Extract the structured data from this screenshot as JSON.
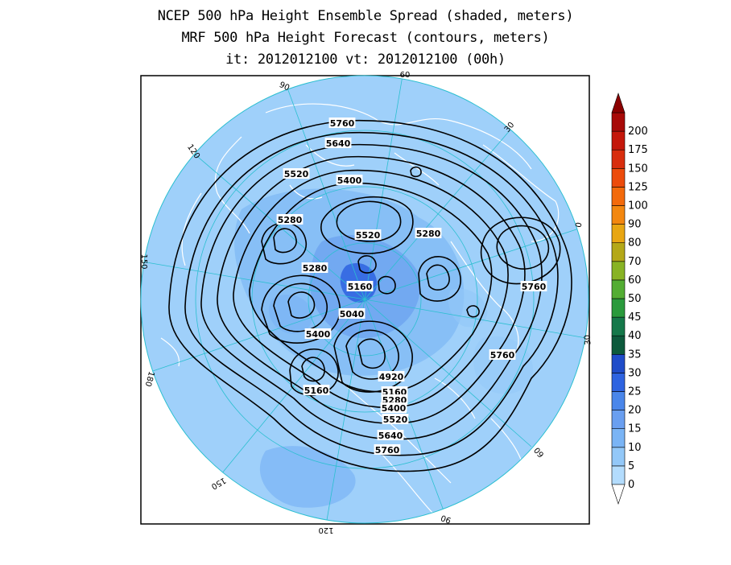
{
  "title": {
    "line1": "NCEP 500 hPa Height Ensemble Spread (shaded, meters)",
    "line2": "MRF 500 hPa Height Forecast (contours, meters)",
    "line3": "it: 2012012100      vt: 2012012100 (00h)"
  },
  "map": {
    "projection": "north-polar-stereographic",
    "meridian_labels": [
      "60",
      "30",
      "0",
      "30",
      "60",
      "90",
      "120",
      "150",
      "180",
      "150",
      "120",
      "90"
    ],
    "contour_labels": [
      "5760",
      "5640",
      "5520",
      "5400",
      "5280",
      "5520",
      "5280",
      "5280",
      "5160",
      "5040",
      "5400",
      "4920",
      "5160",
      "5280",
      "5400",
      "5520",
      "5640",
      "5760",
      "5160",
      "5760",
      "5760"
    ],
    "colors": {
      "background_spread": "#9fd0fa",
      "land_outline": "#ffffff",
      "contour": "#000000",
      "grid": "#2bbfd0"
    }
  },
  "colorbar": {
    "ticks": [
      "0",
      "5",
      "10",
      "15",
      "20",
      "25",
      "30",
      "35",
      "40",
      "45",
      "50",
      "60",
      "70",
      "80",
      "90",
      "100",
      "125",
      "150",
      "175",
      "200"
    ],
    "colors": [
      "#b3dcfd",
      "#93c8f8",
      "#7ab4f5",
      "#6a9ff0",
      "#4a86ea",
      "#2e63e0",
      "#1f4cc9",
      "#0d5a3c",
      "#15784a",
      "#2a9a3c",
      "#53ad33",
      "#88b324",
      "#b4a818",
      "#e8a612",
      "#f3870f",
      "#f36a0b",
      "#ec4b0b",
      "#d82d0d",
      "#c4170b",
      "#a80a08"
    ]
  }
}
